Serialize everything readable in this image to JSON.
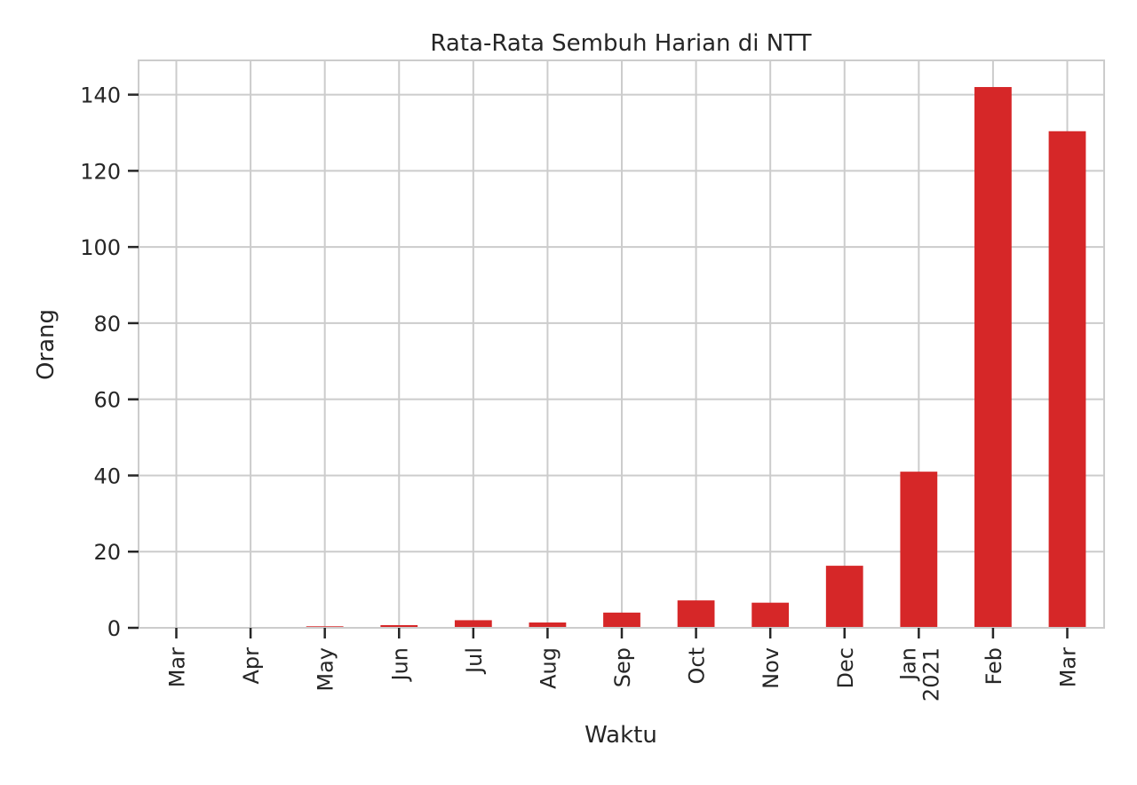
{
  "chart_data": {
    "type": "bar",
    "title": "Rata-Rata Sembuh Harian di NTT",
    "xlabel": "Waktu",
    "ylabel": "Orang",
    "categories": [
      [
        "Mar"
      ],
      [
        "Apr"
      ],
      [
        "May"
      ],
      [
        "Jun"
      ],
      [
        "Jul"
      ],
      [
        "Aug"
      ],
      [
        "Sep"
      ],
      [
        "Oct"
      ],
      [
        "Nov"
      ],
      [
        "Dec"
      ],
      [
        "Jan",
        "2021"
      ],
      [
        "Feb"
      ],
      [
        "Mar"
      ]
    ],
    "values": [
      0,
      0,
      0.4,
      0.7,
      2.0,
      1.4,
      4.0,
      7.2,
      6.6,
      16.3,
      41.0,
      142.0,
      130.4
    ],
    "ylim": [
      0,
      149
    ],
    "yticks": [
      0,
      20,
      40,
      60,
      80,
      100,
      120,
      140
    ],
    "grid": true,
    "bar_color": "#d62728",
    "grid_color": "#cccccc",
    "axis_color": "#cccccc"
  }
}
